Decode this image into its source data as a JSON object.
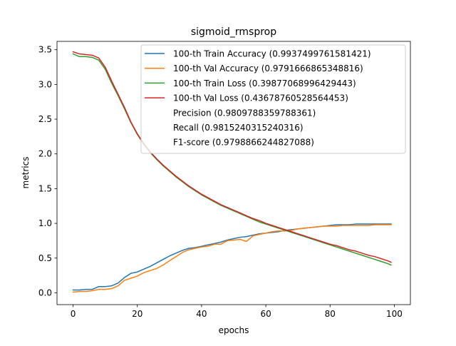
{
  "chart_data": {
    "type": "line",
    "title": "sigmoid_rmsprop",
    "xlabel": "epochs",
    "ylabel": "metrics",
    "xlim": [
      -5,
      105
    ],
    "ylim": [
      -0.17,
      3.62
    ],
    "xticks": [
      0,
      20,
      40,
      60,
      80,
      100
    ],
    "yticks": [
      0.0,
      0.5,
      1.0,
      1.5,
      2.0,
      2.5,
      3.0,
      3.5
    ],
    "xtick_labels": [
      "0",
      "20",
      "40",
      "60",
      "80",
      "100"
    ],
    "ytick_labels": [
      "0.0",
      "0.5",
      "1.0",
      "1.5",
      "2.0",
      "2.5",
      "3.0",
      "3.5"
    ],
    "grid": false,
    "legend_position": "top-right",
    "series": [
      {
        "name": "100-th Train Accuracy (0.9937499761581421)",
        "color": "#1f77b4",
        "points": [
          [
            0,
            0.04
          ],
          [
            2,
            0.04
          ],
          [
            4,
            0.05
          ],
          [
            6,
            0.05
          ],
          [
            8,
            0.09
          ],
          [
            10,
            0.09
          ],
          [
            12,
            0.1
          ],
          [
            14,
            0.14
          ],
          [
            16,
            0.22
          ],
          [
            18,
            0.28
          ],
          [
            20,
            0.3
          ],
          [
            22,
            0.34
          ],
          [
            24,
            0.38
          ],
          [
            26,
            0.43
          ],
          [
            28,
            0.48
          ],
          [
            30,
            0.53
          ],
          [
            32,
            0.57
          ],
          [
            34,
            0.61
          ],
          [
            36,
            0.64
          ],
          [
            38,
            0.65
          ],
          [
            40,
            0.67
          ],
          [
            42,
            0.69
          ],
          [
            44,
            0.71
          ],
          [
            46,
            0.73
          ],
          [
            48,
            0.76
          ],
          [
            50,
            0.78
          ],
          [
            52,
            0.8
          ],
          [
            54,
            0.81
          ],
          [
            56,
            0.83
          ],
          [
            58,
            0.85
          ],
          [
            60,
            0.86
          ],
          [
            62,
            0.87
          ],
          [
            64,
            0.88
          ],
          [
            66,
            0.9
          ],
          [
            68,
            0.91
          ],
          [
            70,
            0.92
          ],
          [
            72,
            0.93
          ],
          [
            74,
            0.94
          ],
          [
            76,
            0.95
          ],
          [
            78,
            0.96
          ],
          [
            80,
            0.97
          ],
          [
            82,
            0.98
          ],
          [
            84,
            0.98
          ],
          [
            86,
            0.98
          ],
          [
            88,
            0.99
          ],
          [
            90,
            0.99
          ],
          [
            92,
            0.99
          ],
          [
            94,
            0.99
          ],
          [
            96,
            0.99
          ],
          [
            98,
            0.99
          ],
          [
            99,
            0.99
          ]
        ]
      },
      {
        "name": "100-th Val Accuracy (0.9791666865348816)",
        "color": "#ff7f0e",
        "points": [
          [
            0,
            0.01
          ],
          [
            2,
            0.02
          ],
          [
            4,
            0.02
          ],
          [
            6,
            0.03
          ],
          [
            8,
            0.05
          ],
          [
            10,
            0.05
          ],
          [
            12,
            0.06
          ],
          [
            14,
            0.1
          ],
          [
            16,
            0.18
          ],
          [
            18,
            0.21
          ],
          [
            20,
            0.24
          ],
          [
            22,
            0.29
          ],
          [
            24,
            0.32
          ],
          [
            26,
            0.35
          ],
          [
            28,
            0.4
          ],
          [
            30,
            0.46
          ],
          [
            32,
            0.52
          ],
          [
            34,
            0.58
          ],
          [
            36,
            0.62
          ],
          [
            38,
            0.64
          ],
          [
            40,
            0.66
          ],
          [
            42,
            0.67
          ],
          [
            44,
            0.7
          ],
          [
            46,
            0.7
          ],
          [
            48,
            0.75
          ],
          [
            50,
            0.76
          ],
          [
            52,
            0.77
          ],
          [
            54,
            0.74
          ],
          [
            56,
            0.82
          ],
          [
            58,
            0.84
          ],
          [
            60,
            0.86
          ],
          [
            62,
            0.88
          ],
          [
            64,
            0.89
          ],
          [
            66,
            0.89
          ],
          [
            68,
            0.9
          ],
          [
            70,
            0.92
          ],
          [
            72,
            0.93
          ],
          [
            74,
            0.94
          ],
          [
            76,
            0.95
          ],
          [
            78,
            0.96
          ],
          [
            80,
            0.96
          ],
          [
            82,
            0.96
          ],
          [
            84,
            0.97
          ],
          [
            86,
            0.97
          ],
          [
            88,
            0.97
          ],
          [
            90,
            0.97
          ],
          [
            92,
            0.97
          ],
          [
            94,
            0.98
          ],
          [
            96,
            0.98
          ],
          [
            98,
            0.98
          ],
          [
            99,
            0.98
          ]
        ]
      },
      {
        "name": "100-th Train Loss (0.39877068996429443)",
        "color": "#2ca02c",
        "points": [
          [
            0,
            3.44
          ],
          [
            2,
            3.4
          ],
          [
            4,
            3.4
          ],
          [
            6,
            3.39
          ],
          [
            8,
            3.35
          ],
          [
            10,
            3.22
          ],
          [
            12,
            3.02
          ],
          [
            14,
            2.84
          ],
          [
            16,
            2.65
          ],
          [
            18,
            2.45
          ],
          [
            20,
            2.28
          ],
          [
            22,
            2.14
          ],
          [
            24,
            2.02
          ],
          [
            26,
            1.92
          ],
          [
            28,
            1.83
          ],
          [
            30,
            1.75
          ],
          [
            32,
            1.67
          ],
          [
            34,
            1.6
          ],
          [
            36,
            1.53
          ],
          [
            38,
            1.47
          ],
          [
            40,
            1.41
          ],
          [
            42,
            1.36
          ],
          [
            44,
            1.31
          ],
          [
            46,
            1.26
          ],
          [
            48,
            1.22
          ],
          [
            50,
            1.18
          ],
          [
            52,
            1.14
          ],
          [
            54,
            1.1
          ],
          [
            56,
            1.06
          ],
          [
            58,
            1.02
          ],
          [
            60,
            0.99
          ],
          [
            62,
            0.96
          ],
          [
            64,
            0.93
          ],
          [
            66,
            0.9
          ],
          [
            68,
            0.87
          ],
          [
            70,
            0.84
          ],
          [
            72,
            0.81
          ],
          [
            74,
            0.78
          ],
          [
            76,
            0.75
          ],
          [
            78,
            0.72
          ],
          [
            80,
            0.69
          ],
          [
            82,
            0.66
          ],
          [
            84,
            0.63
          ],
          [
            86,
            0.6
          ],
          [
            88,
            0.57
          ],
          [
            90,
            0.54
          ],
          [
            92,
            0.51
          ],
          [
            94,
            0.48
          ],
          [
            96,
            0.45
          ],
          [
            98,
            0.42
          ],
          [
            99,
            0.4
          ]
        ]
      },
      {
        "name": "100-th Val Loss (0.43678760528564453)",
        "color": "#d62728",
        "points": [
          [
            0,
            3.47
          ],
          [
            2,
            3.44
          ],
          [
            4,
            3.43
          ],
          [
            6,
            3.42
          ],
          [
            8,
            3.38
          ],
          [
            10,
            3.25
          ],
          [
            12,
            3.05
          ],
          [
            14,
            2.86
          ],
          [
            16,
            2.67
          ],
          [
            18,
            2.46
          ],
          [
            20,
            2.29
          ],
          [
            22,
            2.15
          ],
          [
            24,
            2.03
          ],
          [
            26,
            1.93
          ],
          [
            28,
            1.84
          ],
          [
            30,
            1.76
          ],
          [
            32,
            1.68
          ],
          [
            34,
            1.61
          ],
          [
            36,
            1.54
          ],
          [
            38,
            1.48
          ],
          [
            40,
            1.42
          ],
          [
            42,
            1.37
          ],
          [
            44,
            1.32
          ],
          [
            46,
            1.27
          ],
          [
            48,
            1.23
          ],
          [
            50,
            1.19
          ],
          [
            52,
            1.15
          ],
          [
            54,
            1.11
          ],
          [
            56,
            1.07
          ],
          [
            58,
            1.04
          ],
          [
            60,
            1.0
          ],
          [
            62,
            0.97
          ],
          [
            64,
            0.94
          ],
          [
            66,
            0.91
          ],
          [
            68,
            0.88
          ],
          [
            70,
            0.85
          ],
          [
            72,
            0.82
          ],
          [
            74,
            0.79
          ],
          [
            76,
            0.76
          ],
          [
            78,
            0.73
          ],
          [
            80,
            0.7
          ],
          [
            82,
            0.68
          ],
          [
            84,
            0.65
          ],
          [
            86,
            0.62
          ],
          [
            88,
            0.6
          ],
          [
            90,
            0.57
          ],
          [
            92,
            0.54
          ],
          [
            94,
            0.52
          ],
          [
            96,
            0.49
          ],
          [
            98,
            0.46
          ],
          [
            99,
            0.44
          ]
        ]
      }
    ],
    "legend_extra": [
      "Precision (0.9809788359788361)",
      "Recall (0.9815240315240316)",
      "F1-score (0.9798866244827088)"
    ]
  }
}
